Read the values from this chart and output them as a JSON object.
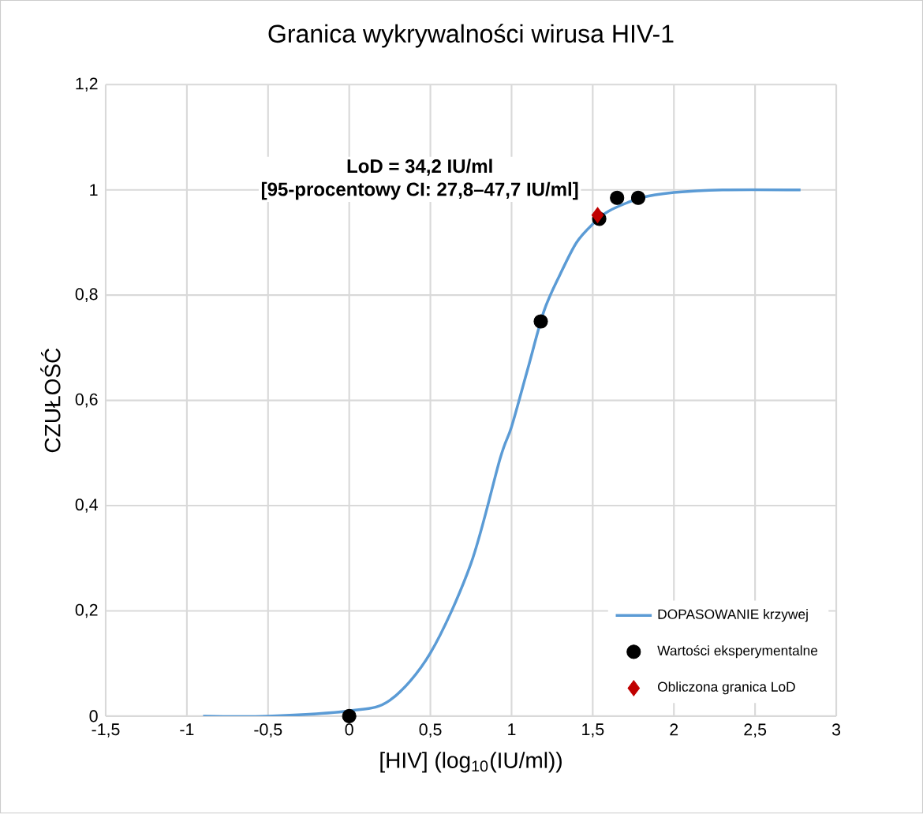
{
  "chart_data": {
    "type": "scatter",
    "title": "Granica wykrywalności wirusa HIV-1",
    "xlabel": "[HIV] (log$_{10}$(IU/ml))",
    "ylabel": "CZUŁOŚĆ",
    "xlim": [
      -1.5,
      3
    ],
    "xticks": [
      {
        "value": -1.5,
        "label": "-1,5"
      },
      {
        "value": -1,
        "label": "-1"
      },
      {
        "value": -0.5,
        "label": "-0,5"
      },
      {
        "value": 0,
        "label": "0"
      },
      {
        "value": 0.5,
        "label": "0,5"
      },
      {
        "value": 1,
        "label": "1"
      },
      {
        "value": 1.5,
        "label": "1,5"
      },
      {
        "value": 2,
        "label": "2"
      },
      {
        "value": 2.5,
        "label": "2,5"
      },
      {
        "value": 3,
        "label": "3"
      }
    ],
    "ylim": [
      0,
      1.2
    ],
    "yticks": [
      {
        "value": 0,
        "label": "0"
      },
      {
        "value": 0.2,
        "label": "0,2"
      },
      {
        "value": 0.4,
        "label": "0,4"
      },
      {
        "value": 0.6,
        "label": "0,6"
      },
      {
        "value": 0.8,
        "label": "0,8"
      },
      {
        "value": 1,
        "label": "1"
      },
      {
        "value": 1.2,
        "label": "1,2"
      }
    ],
    "grid": true,
    "legend": "bottom right",
    "annotations": [
      "LoD = 34,2 IU/ml",
      "[95-procentowy CI: 27,8–47,7 IU/ml]"
    ],
    "series": [
      {
        "name": "DOPASOWANIE krzywej",
        "type": "line",
        "marker": "none",
        "color": "#5b9bd5",
        "x": [
          -0.9,
          -0.5,
          0,
          0.25,
          0.5,
          0.75,
          0.93,
          1,
          1.1,
          1.2,
          1.3,
          1.4,
          1.5,
          1.6,
          1.8,
          2,
          2.3,
          2.78
        ],
        "values": [
          0,
          0,
          0.01,
          0.03,
          0.12,
          0.29,
          0.49,
          0.55,
          0.66,
          0.77,
          0.84,
          0.9,
          0.935,
          0.96,
          0.985,
          0.995,
          1,
          1
        ]
      },
      {
        "name": "Wartości eksperymentalne",
        "marker": "circle",
        "color": "#000000",
        "x": [
          0,
          1.18,
          1.54,
          1.65,
          1.78
        ],
        "values": [
          0,
          0.75,
          0.945,
          0.985,
          0.985
        ]
      },
      {
        "name": "Obliczona granica LoD",
        "marker": "diamond",
        "color": "#c00000",
        "x": [
          1.53
        ],
        "values": [
          0.952
        ]
      }
    ]
  }
}
